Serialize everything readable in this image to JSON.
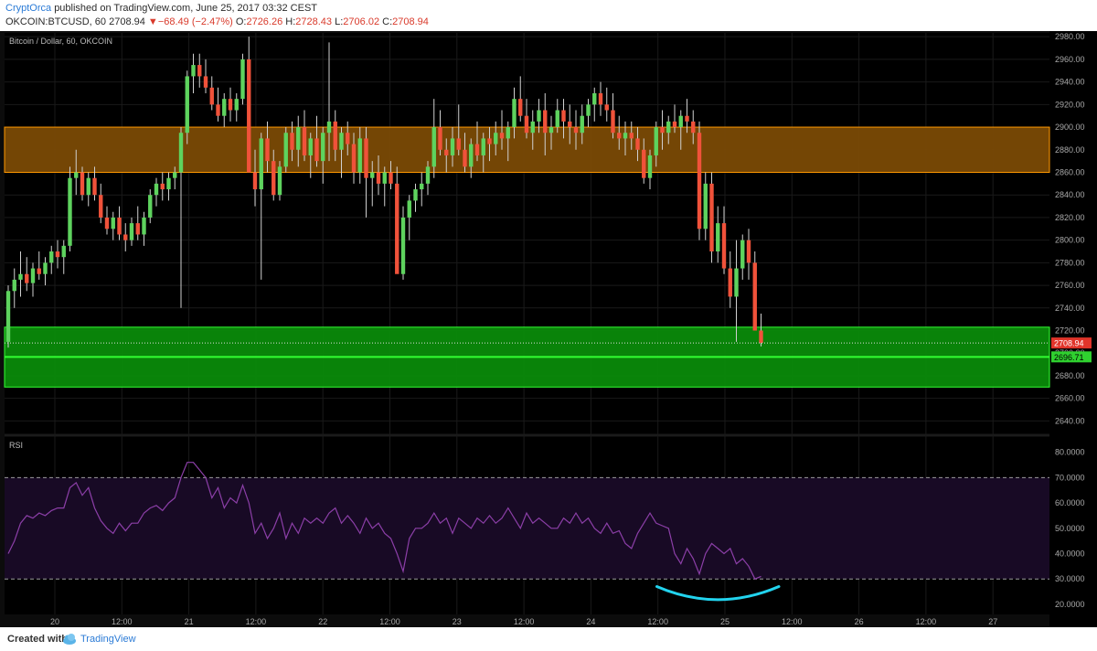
{
  "header": {
    "author": "CryptOrca",
    "published_text": "published on TradingView.com, June 25, 2017 03:32 CEST",
    "symbol": "OKCOIN:BTCUSD, 60",
    "price": "2708.94",
    "arrow": "▼",
    "change": "−68.49 (−2.47%)",
    "o_label": "O:",
    "o_value": "2726.26",
    "h_label": "H:",
    "h_value": "2728.43",
    "l_label": "L:",
    "l_value": "2706.02",
    "c_label": "C:",
    "c_value": "2708.94"
  },
  "footer": {
    "created_with": "Created with",
    "brand": "TradingView"
  },
  "colors": {
    "background": "#000000",
    "up_candle": "#5ed35e",
    "down_candle": "#f0523a",
    "resistance_zone": "#7a4a05",
    "resistance_border": "#ff9800",
    "support_zone": "#0a8a0a",
    "support_line": "#33ff33",
    "rsi_line": "#8c3fa8",
    "rsi_band": "#180a25",
    "annotation": "#22d3ee"
  },
  "chart_data": [
    {
      "type": "candlestick",
      "title": "Bitcoin / Dollar, 60, OKCOIN",
      "x_ticks": [
        "20",
        "12:00",
        "21",
        "12:00",
        "22",
        "12:00",
        "23",
        "12:00",
        "24",
        "12:00",
        "25",
        "12:00",
        "26",
        "12:00",
        "27"
      ],
      "y_ticks": [
        "2980.00",
        "2960.00",
        "2940.00",
        "2920.00",
        "2900.00",
        "2880.00",
        "2860.00",
        "2840.00",
        "2820.00",
        "2800.00",
        "2780.00",
        "2760.00",
        "2740.00",
        "2720.00",
        "2700.00",
        "2680.00",
        "2660.00",
        "2640.00"
      ],
      "ylim": [
        2629,
        2985
      ],
      "last_price_label": "2708.94",
      "support_line_label": "2696.71",
      "support_line_value": 2696.71,
      "zones": [
        {
          "name": "resistance",
          "from": 2860,
          "to": 2900
        },
        {
          "name": "support",
          "from": 2670,
          "to": 2723
        }
      ],
      "candles_ohlc": [
        [
          2710,
          2760,
          2705,
          2755
        ],
        [
          2755,
          2775,
          2740,
          2765
        ],
        [
          2765,
          2790,
          2750,
          2770
        ],
        [
          2770,
          2785,
          2755,
          2762
        ],
        [
          2762,
          2780,
          2750,
          2775
        ],
        [
          2775,
          2790,
          2765,
          2770
        ],
        [
          2770,
          2785,
          2760,
          2780
        ],
        [
          2780,
          2795,
          2770,
          2790
        ],
        [
          2790,
          2800,
          2775,
          2785
        ],
        [
          2785,
          2800,
          2770,
          2795
        ],
        [
          2795,
          2865,
          2790,
          2855
        ],
        [
          2855,
          2880,
          2840,
          2860
        ],
        [
          2860,
          2865,
          2835,
          2840
        ],
        [
          2840,
          2860,
          2830,
          2855
        ],
        [
          2855,
          2865,
          2835,
          2840
        ],
        [
          2840,
          2850,
          2815,
          2820
        ],
        [
          2820,
          2830,
          2805,
          2810
        ],
        [
          2810,
          2825,
          2800,
          2820
        ],
        [
          2820,
          2830,
          2800,
          2805
        ],
        [
          2805,
          2815,
          2790,
          2800
        ],
        [
          2800,
          2820,
          2795,
          2815
        ],
        [
          2815,
          2830,
          2800,
          2805
        ],
        [
          2805,
          2825,
          2795,
          2820
        ],
        [
          2820,
          2845,
          2815,
          2840
        ],
        [
          2840,
          2855,
          2830,
          2850
        ],
        [
          2850,
          2860,
          2835,
          2845
        ],
        [
          2845,
          2860,
          2835,
          2855
        ],
        [
          2855,
          2865,
          2845,
          2860
        ],
        [
          2860,
          2900,
          2740,
          2895
        ],
        [
          2895,
          2950,
          2885,
          2945
        ],
        [
          2945,
          2965,
          2930,
          2955
        ],
        [
          2955,
          2965,
          2935,
          2945
        ],
        [
          2945,
          2960,
          2930,
          2935
        ],
        [
          2935,
          2945,
          2915,
          2920
        ],
        [
          2920,
          2935,
          2905,
          2910
        ],
        [
          2910,
          2930,
          2900,
          2925
        ],
        [
          2925,
          2935,
          2905,
          2915
        ],
        [
          2915,
          2930,
          2905,
          2925
        ],
        [
          2925,
          2965,
          2920,
          2960
        ],
        [
          2960,
          2980,
          2870,
          2860
        ],
        [
          2860,
          2880,
          2830,
          2845
        ],
        [
          2845,
          2895,
          2765,
          2890
        ],
        [
          2890,
          2905,
          2860,
          2870
        ],
        [
          2870,
          2880,
          2835,
          2840
        ],
        [
          2840,
          2870,
          2835,
          2865
        ],
        [
          2865,
          2900,
          2860,
          2895
        ],
        [
          2895,
          2905,
          2870,
          2880
        ],
        [
          2880,
          2910,
          2865,
          2900
        ],
        [
          2900,
          2915,
          2870,
          2875
        ],
        [
          2875,
          2895,
          2855,
          2890
        ],
        [
          2890,
          2910,
          2865,
          2870
        ],
        [
          2870,
          2900,
          2850,
          2895
        ],
        [
          2895,
          2975,
          2870,
          2905
        ],
        [
          2905,
          2915,
          2870,
          2880
        ],
        [
          2880,
          2900,
          2855,
          2895
        ],
        [
          2895,
          2905,
          2875,
          2885
        ],
        [
          2885,
          2895,
          2850,
          2860
        ],
        [
          2860,
          2900,
          2850,
          2890
        ],
        [
          2890,
          2900,
          2820,
          2855
        ],
        [
          2855,
          2870,
          2830,
          2860
        ],
        [
          2860,
          2875,
          2840,
          2850
        ],
        [
          2850,
          2865,
          2830,
          2860
        ],
        [
          2860,
          2870,
          2845,
          2850
        ],
        [
          2850,
          2865,
          2800,
          2770
        ],
        [
          2770,
          2830,
          2765,
          2820
        ],
        [
          2820,
          2840,
          2800,
          2835
        ],
        [
          2835,
          2850,
          2825,
          2845
        ],
        [
          2845,
          2860,
          2830,
          2850
        ],
        [
          2850,
          2870,
          2840,
          2865
        ],
        [
          2865,
          2925,
          2855,
          2900
        ],
        [
          2900,
          2915,
          2875,
          2880
        ],
        [
          2880,
          2890,
          2860,
          2875
        ],
        [
          2875,
          2900,
          2865,
          2890
        ],
        [
          2890,
          2920,
          2875,
          2880
        ],
        [
          2880,
          2895,
          2860,
          2865
        ],
        [
          2865,
          2890,
          2855,
          2885
        ],
        [
          2885,
          2905,
          2870,
          2875
        ],
        [
          2875,
          2895,
          2860,
          2890
        ],
        [
          2890,
          2900,
          2870,
          2885
        ],
        [
          2885,
          2905,
          2875,
          2895
        ],
        [
          2895,
          2915,
          2880,
          2890
        ],
        [
          2890,
          2905,
          2870,
          2900
        ],
        [
          2900,
          2935,
          2890,
          2925
        ],
        [
          2925,
          2945,
          2905,
          2910
        ],
        [
          2910,
          2925,
          2890,
          2895
        ],
        [
          2895,
          2915,
          2880,
          2905
        ],
        [
          2905,
          2925,
          2895,
          2915
        ],
        [
          2915,
          2930,
          2875,
          2895
        ],
        [
          2895,
          2910,
          2880,
          2900
        ],
        [
          2900,
          2925,
          2895,
          2915
        ],
        [
          2915,
          2925,
          2890,
          2905
        ],
        [
          2905,
          2920,
          2885,
          2900
        ],
        [
          2900,
          2915,
          2880,
          2895
        ],
        [
          2895,
          2920,
          2885,
          2910
        ],
        [
          2910,
          2925,
          2900,
          2920
        ],
        [
          2920,
          2935,
          2905,
          2930
        ],
        [
          2930,
          2940,
          2910,
          2920
        ],
        [
          2920,
          2935,
          2905,
          2915
        ],
        [
          2915,
          2930,
          2890,
          2895
        ],
        [
          2895,
          2910,
          2880,
          2890
        ],
        [
          2890,
          2905,
          2875,
          2895
        ],
        [
          2895,
          2905,
          2880,
          2890
        ],
        [
          2890,
          2900,
          2870,
          2880
        ],
        [
          2880,
          2890,
          2850,
          2855
        ],
        [
          2855,
          2880,
          2845,
          2875
        ],
        [
          2875,
          2905,
          2865,
          2900
        ],
        [
          2900,
          2915,
          2880,
          2895
        ],
        [
          2895,
          2910,
          2885,
          2905
        ],
        [
          2905,
          2920,
          2895,
          2900
        ],
        [
          2900,
          2915,
          2880,
          2910
        ],
        [
          2910,
          2925,
          2895,
          2905
        ],
        [
          2905,
          2915,
          2885,
          2895
        ],
        [
          2895,
          2905,
          2800,
          2810
        ],
        [
          2810,
          2860,
          2800,
          2850
        ],
        [
          2850,
          2860,
          2780,
          2790
        ],
        [
          2790,
          2830,
          2780,
          2815
        ],
        [
          2815,
          2830,
          2770,
          2775
        ],
        [
          2775,
          2790,
          2740,
          2750
        ],
        [
          2750,
          2800,
          2710,
          2775
        ],
        [
          2775,
          2805,
          2765,
          2800
        ],
        [
          2800,
          2810,
          2765,
          2780
        ],
        [
          2780,
          2790,
          2750,
          2720
        ],
        [
          2720,
          2735,
          2706,
          2709
        ]
      ]
    },
    {
      "type": "line",
      "title": "RSI",
      "y_ticks": [
        "80.0000",
        "70.0000",
        "60.0000",
        "50.0000",
        "40.0000",
        "30.0000",
        "20.0000"
      ],
      "ylim": [
        16,
        86
      ],
      "overbought": 70,
      "oversold": 30,
      "values": [
        40,
        45,
        52,
        55,
        54,
        56,
        55,
        57,
        58,
        58,
        66,
        68,
        63,
        66,
        58,
        53,
        50,
        48,
        52,
        49,
        52,
        52,
        56,
        58,
        59,
        57,
        60,
        62,
        70,
        76,
        76,
        73,
        70,
        62,
        66,
        58,
        62,
        60,
        67,
        60,
        48,
        52,
        46,
        50,
        56,
        46,
        52,
        48,
        54,
        52,
        54,
        52,
        56,
        58,
        52,
        55,
        52,
        48,
        54,
        50,
        52,
        48,
        46,
        40,
        33,
        46,
        50,
        50,
        52,
        56,
        52,
        54,
        48,
        54,
        52,
        50,
        54,
        52,
        55,
        52,
        54,
        58,
        54,
        50,
        56,
        52,
        54,
        52,
        50,
        50,
        54,
        52,
        56,
        52,
        54,
        50,
        48,
        52,
        48,
        49,
        44,
        42,
        48,
        52,
        56,
        52,
        51,
        50,
        40,
        36,
        42,
        38,
        32,
        40,
        44,
        42,
        40,
        42,
        36,
        38,
        35,
        30,
        31
      ]
    }
  ]
}
